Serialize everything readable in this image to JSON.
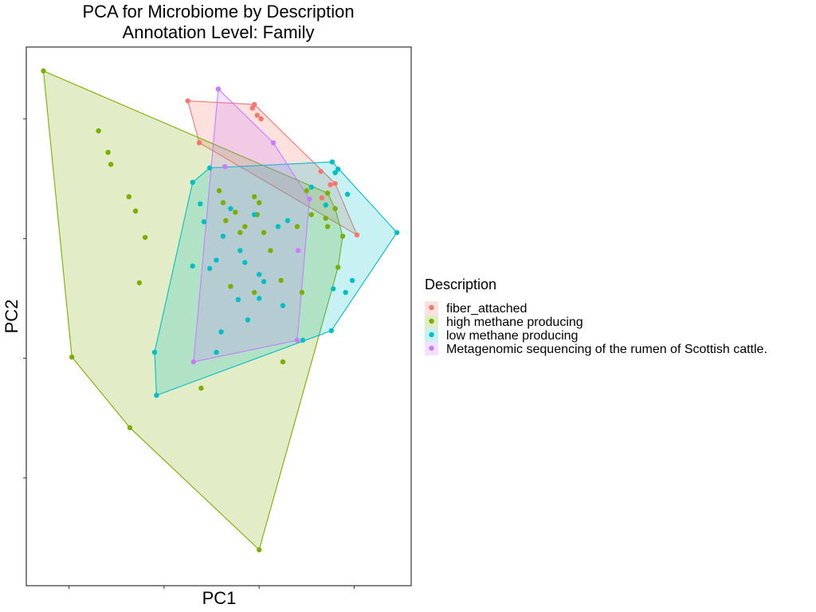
{
  "chart_data": {
    "type": "scatter",
    "title_lines": [
      "PCA for Microbiome by Description",
      "Annotation Level: Family"
    ],
    "xlabel": "PC1",
    "ylabel": "PC2",
    "xlim": [
      -2.45,
      1.6
    ],
    "ylim": [
      -2.9,
      1.6
    ],
    "grid": false,
    "hulls": true,
    "legend": {
      "title": "Description",
      "placement": "right"
    },
    "series": [
      {
        "name": "fiber_attached",
        "color": "#F8766D",
        "points": [
          [
            -0.75,
            1.15
          ],
          [
            -0.63,
            0.8
          ],
          [
            -0.05,
            1.12
          ],
          [
            -0.07,
            1.09
          ],
          [
            -0.02,
            1.03
          ],
          [
            0.02,
            1.0
          ],
          [
            0.66,
            0.34
          ],
          [
            0.75,
            0.45
          ],
          [
            1.03,
            0.03
          ],
          [
            0.8,
            0.46
          ],
          [
            0.65,
            0.56
          ]
        ]
      },
      {
        "name": "high methane producing",
        "color": "#7CAE00",
        "points": [
          [
            -2.27,
            1.4
          ],
          [
            -1.69,
            0.9
          ],
          [
            -1.59,
            0.72
          ],
          [
            -1.56,
            0.62
          ],
          [
            -1.37,
            0.35
          ],
          [
            -1.3,
            0.23
          ],
          [
            -1.2,
            0.01
          ],
          [
            -1.26,
            -0.37
          ],
          [
            -1.97,
            -0.99
          ],
          [
            -1.36,
            -1.58
          ],
          [
            0.0,
            -2.6
          ],
          [
            -0.61,
            -1.25
          ],
          [
            0.25,
            -1.03
          ],
          [
            0.88,
            0.02
          ],
          [
            0.83,
            -0.24
          ],
          [
            0.8,
            0.25
          ],
          [
            0.72,
            0.38
          ],
          [
            0.7,
            0.17
          ],
          [
            0.72,
            0.1
          ],
          [
            -0.42,
            0.4
          ],
          [
            -0.38,
            0.3
          ],
          [
            -0.25,
            0.22
          ],
          [
            -0.15,
            0.1
          ],
          [
            -0.05,
            0.35
          ],
          [
            -0.02,
            0.2
          ],
          [
            0.05,
            0.05
          ],
          [
            0.12,
            -0.1
          ],
          [
            0.23,
            -0.35
          ],
          [
            -0.3,
            -0.4
          ],
          [
            -0.05,
            -0.45
          ],
          [
            0.4,
            0.1
          ],
          [
            0.55,
            0.2
          ],
          [
            0.45,
            -0.45
          ],
          [
            -0.2,
            0.05
          ],
          [
            0.0,
            0.3
          ],
          [
            -0.35,
            0.15
          ],
          [
            0.5,
            0.4
          ]
        ]
      },
      {
        "name": "low methane producing",
        "color": "#00BFC4",
        "points": [
          [
            -1.1,
            -0.95
          ],
          [
            -1.08,
            -1.31
          ],
          [
            -0.7,
            0.47
          ],
          [
            -0.52,
            0.59
          ],
          [
            -0.62,
            0.29
          ],
          [
            -0.58,
            0.14
          ],
          [
            -0.52,
            -0.25
          ],
          [
            -0.7,
            -0.23
          ],
          [
            -0.45,
            -0.18
          ],
          [
            -0.38,
            0.02
          ],
          [
            -0.22,
            -0.51
          ],
          [
            -0.45,
            -0.95
          ],
          [
            -0.4,
            -0.78
          ],
          [
            -0.12,
            -0.68
          ],
          [
            0.0,
            -0.5
          ],
          [
            0.05,
            -0.36
          ],
          [
            0.2,
            0.1
          ],
          [
            0.25,
            -0.56
          ],
          [
            1.45,
            0.05
          ],
          [
            0.78,
            -0.42
          ],
          [
            0.91,
            -0.45
          ],
          [
            0.98,
            -0.35
          ],
          [
            0.76,
            -0.77
          ],
          [
            0.55,
            0.43
          ],
          [
            0.46,
            -0.85
          ],
          [
            0.7,
            0.28
          ],
          [
            0.83,
            0.58
          ],
          [
            0.93,
            0.37
          ],
          [
            0.77,
            0.64
          ],
          [
            0.8,
            0.55
          ],
          [
            -0.3,
            0.25
          ],
          [
            -0.05,
            0.2
          ],
          [
            0.3,
            0.15
          ],
          [
            -0.2,
            -0.1
          ],
          [
            -0.15,
            -0.2
          ],
          [
            0.0,
            -0.3
          ]
        ]
      },
      {
        "name": "Metagenomic sequencing of the rumen of Scottish cattle.",
        "color": "#C77CFF",
        "points": [
          [
            -0.43,
            1.25
          ],
          [
            0.15,
            0.8
          ],
          [
            0.53,
            0.33
          ],
          [
            0.41,
            -0.1
          ],
          [
            0.4,
            -0.85
          ],
          [
            -0.69,
            -1.03
          ],
          [
            -0.36,
            0.6
          ]
        ]
      }
    ]
  }
}
